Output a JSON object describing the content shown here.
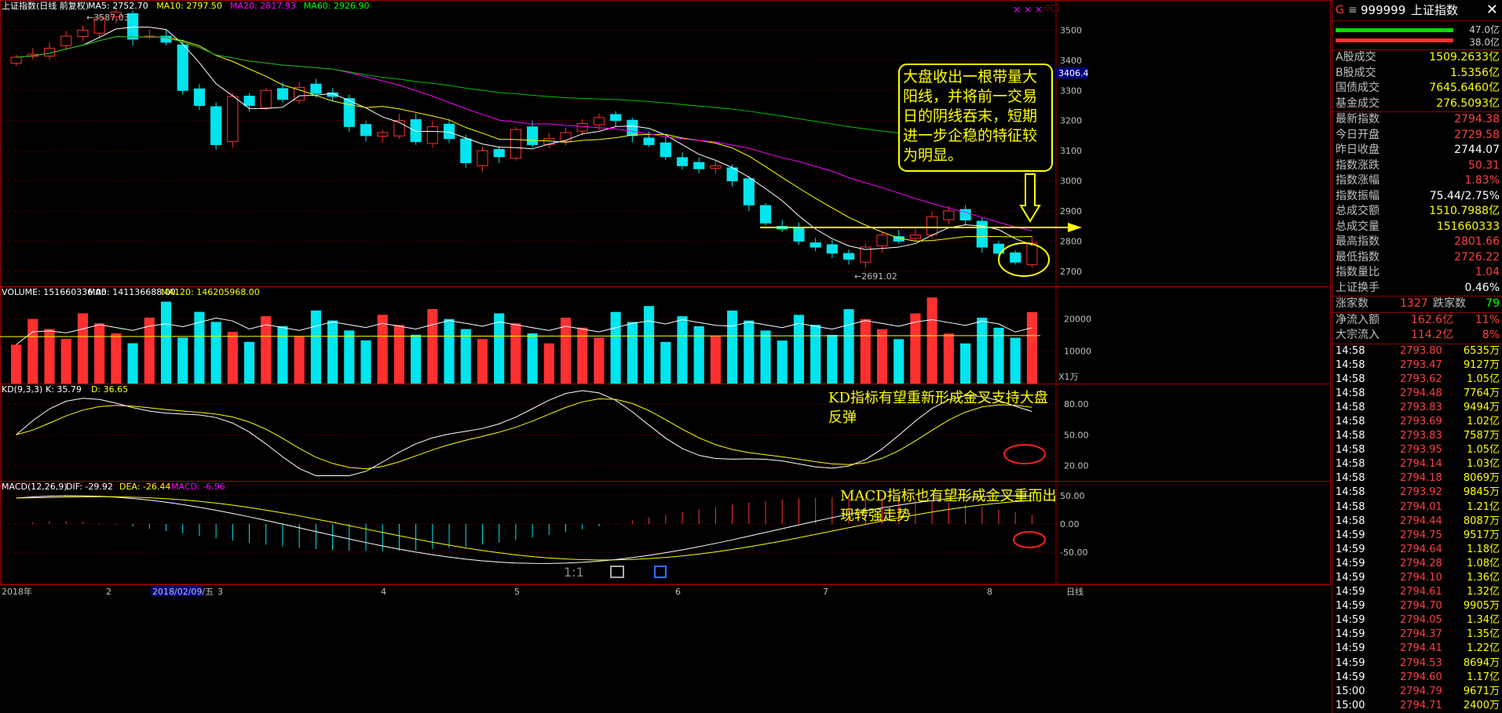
{
  "title": "上证指数(日线 前复权)",
  "ma": [
    {
      "label": "MA5: 2752.70",
      "color": "#ffffff"
    },
    {
      "label": "MA10: 2797.50",
      "color": "#ffff00"
    },
    {
      "label": "MA20: 2817.93",
      "color": "#ff00ff"
    },
    {
      "label": "MA60: 2926.90",
      "color": "#00ff00"
    }
  ],
  "price_axis": {
    "ticks": [
      "3500",
      "3400",
      "3300",
      "3200",
      "3100",
      "3000",
      "2900",
      "2800",
      "2700"
    ],
    "current_label": "3406.4"
  },
  "high_label": "3587.03",
  "low_label": "2691.02",
  "annotations": {
    "main": "大盘收出一根带量大阳线，并将前一交易日的阴线吞末，短期进一步企稳的特征较为明显。",
    "kd": "KD指标有望重新形成金叉支持大盘反弹",
    "macd": "MACD指标也有望形成金叉重而出现转强走势"
  },
  "volume": {
    "label": "VOLUME: 151660336.00",
    "ma5": "MA5: 141136688.00",
    "ma120": "MA120: 146205968.00",
    "ticks": [
      "20000",
      "10000"
    ],
    "unit": "X1万"
  },
  "kd": {
    "label": "KD(9,3,3)",
    "k": "K: 35.79",
    "d": "D: 36.65",
    "ticks": [
      "80.00",
      "50.00",
      "20.00"
    ]
  },
  "macd": {
    "label": "MACD(12,26,9)",
    "dif": "DIF: -29.92",
    "dea": "DEA: -26.44",
    "macd": "MACD: -6.96",
    "ticks": [
      "50.00",
      "0.00",
      "-50.00"
    ]
  },
  "x_axis": {
    "labels": [
      "2018年",
      "2",
      "2018/02/09/五",
      "3",
      "4",
      "5",
      "6",
      "7",
      "8"
    ],
    "period": "日线"
  },
  "toolbar": {
    "zoom": "1:1"
  },
  "chart_data": {
    "type": "candlestick",
    "title": "上证指数(日线 前复权)",
    "ylim": [
      2650,
      3600
    ],
    "x_months": [
      "2018年",
      "2",
      "3",
      "4",
      "5",
      "6",
      "7",
      "8"
    ],
    "close_approx": [
      3410,
      3420,
      3440,
      3480,
      3500,
      3540,
      3560,
      3470,
      3480,
      3460,
      3300,
      3250,
      3120,
      3280,
      3250,
      3300,
      3270,
      3310,
      3290,
      3280,
      3180,
      3150,
      3160,
      3200,
      3130,
      3180,
      3140,
      3060,
      3100,
      3080,
      3170,
      3120,
      3140,
      3160,
      3190,
      3210,
      3200,
      3150,
      3120,
      3080,
      3050,
      3040,
      3050,
      3000,
      2920,
      2860,
      2840,
      2800,
      2780,
      2760,
      2740,
      2780,
      2820,
      2800,
      2820,
      2880,
      2900,
      2870,
      2780,
      2760,
      2730,
      2794
    ]
  },
  "side": {
    "code": "999999",
    "name": "上证指数",
    "bar_vals": [
      "47.0亿",
      "38.0亿"
    ],
    "stats": [
      {
        "l": "A股成交",
        "v": "1509.2633亿",
        "c": "#ffff00"
      },
      {
        "l": "B股成交",
        "v": "1.5356亿",
        "c": "#ffff00"
      },
      {
        "l": "国债成交",
        "v": "7645.6460亿",
        "c": "#ffff00"
      },
      {
        "l": "基金成交",
        "v": "276.5093亿",
        "c": "#ffff00"
      },
      {
        "l": "最新指数",
        "v": "2794.38",
        "c": "#ff4040",
        "sep": true
      },
      {
        "l": "今日开盘",
        "v": "2729.58",
        "c": "#ff4040"
      },
      {
        "l": "昨日收盘",
        "v": "2744.07",
        "c": "#ffffff"
      },
      {
        "l": "指数涨跌",
        "v": "50.31",
        "c": "#ff4040"
      },
      {
        "l": "指数涨幅",
        "v": "1.83%",
        "c": "#ff4040"
      },
      {
        "l": "指数振幅",
        "v": "75.44/2.75%",
        "c": "#ffffff"
      },
      {
        "l": "总成交额",
        "v": "1510.7988亿",
        "c": "#ffff00"
      },
      {
        "l": "总成交量",
        "v": "151660333",
        "c": "#ffff00"
      },
      {
        "l": "最高指数",
        "v": "2801.66",
        "c": "#ff4040"
      },
      {
        "l": "最低指数",
        "v": "2726.22",
        "c": "#ff4040"
      },
      {
        "l": "指数量比",
        "v": "1.04",
        "c": "#ff4040"
      },
      {
        "l": "上证换手",
        "v": "0.46%",
        "c": "#ffffff"
      }
    ],
    "updown": {
      "l1": "涨家数",
      "v1": "1327",
      "l2": "跌家数",
      "v2": "79"
    },
    "flows": [
      {
        "l": "净流入额",
        "v": "162.6亿",
        "p": "11%"
      },
      {
        "l": "大宗流入",
        "v": "114.2亿",
        "p": "8%"
      }
    ],
    "ticks": [
      [
        "14:58",
        "2793.80",
        "6535万"
      ],
      [
        "14:58",
        "2793.47",
        "9127万"
      ],
      [
        "14:58",
        "2793.62",
        "1.05亿"
      ],
      [
        "14:58",
        "2794.48",
        "7764万"
      ],
      [
        "14:58",
        "2793.83",
        "9494万"
      ],
      [
        "14:58",
        "2793.69",
        "1.02亿"
      ],
      [
        "14:58",
        "2793.83",
        "7587万"
      ],
      [
        "14:58",
        "2793.95",
        "1.05亿"
      ],
      [
        "14:58",
        "2794.14",
        "1.03亿"
      ],
      [
        "14:58",
        "2794.18",
        "8069万"
      ],
      [
        "14:58",
        "2793.92",
        "9845万"
      ],
      [
        "14:58",
        "2794.01",
        "1.21亿"
      ],
      [
        "14:58",
        "2794.44",
        "8087万"
      ],
      [
        "14:59",
        "2794.75",
        "9517万"
      ],
      [
        "14:59",
        "2794.64",
        "1.18亿"
      ],
      [
        "14:59",
        "2794.28",
        "1.08亿"
      ],
      [
        "14:59",
        "2794.10",
        "1.36亿"
      ],
      [
        "14:59",
        "2794.61",
        "1.32亿"
      ],
      [
        "14:59",
        "2794.70",
        "9905万"
      ],
      [
        "14:59",
        "2794.05",
        "1.34亿"
      ],
      [
        "14:59",
        "2794.37",
        "1.35亿"
      ],
      [
        "14:59",
        "2794.41",
        "1.22亿"
      ],
      [
        "14:59",
        "2794.53",
        "8694万"
      ],
      [
        "14:59",
        "2794.60",
        "1.17亿"
      ],
      [
        "15:00",
        "2794.79",
        "9671万"
      ],
      [
        "15:00",
        "2794.71",
        "2400万"
      ]
    ]
  }
}
